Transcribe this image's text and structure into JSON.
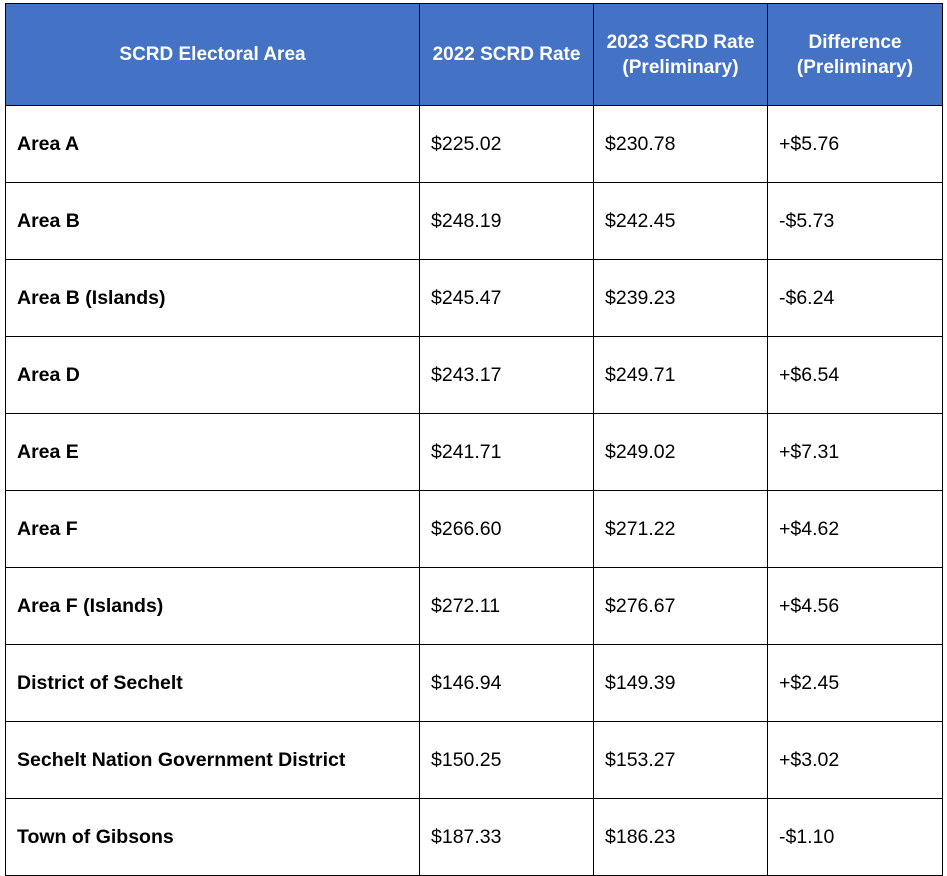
{
  "colors": {
    "header_background": "#4472c4",
    "header_text": "#ffffff",
    "border": "#000000"
  },
  "table": {
    "headers": [
      "SCRD Electoral Area",
      "2022 SCRD Rate",
      "2023 SCRD Rate (Preliminary)",
      "Difference (Preliminary)"
    ],
    "rows": [
      {
        "area": "Area A",
        "rate_2022": "$225.02",
        "rate_2023": "$230.78",
        "difference": "+$5.76"
      },
      {
        "area": "Area B",
        "rate_2022": "$248.19",
        "rate_2023": "$242.45",
        "difference": "-$5.73"
      },
      {
        "area": "Area B (Islands)",
        "rate_2022": "$245.47",
        "rate_2023": "$239.23",
        "difference": "-$6.24"
      },
      {
        "area": "Area D",
        "rate_2022": "$243.17",
        "rate_2023": "$249.71",
        "difference": "+$6.54"
      },
      {
        "area": "Area E",
        "rate_2022": "$241.71",
        "rate_2023": "$249.02",
        "difference": "+$7.31"
      },
      {
        "area": "Area F",
        "rate_2022": "$266.60",
        "rate_2023": "$271.22",
        "difference": "+$4.62"
      },
      {
        "area": "Area F (Islands)",
        "rate_2022": "$272.11",
        "rate_2023": "$276.67",
        "difference": "+$4.56"
      },
      {
        "area": "District of Sechelt",
        "rate_2022": "$146.94",
        "rate_2023": "$149.39",
        "difference": "+$2.45"
      },
      {
        "area": "Sechelt Nation Government District",
        "rate_2022": "$150.25",
        "rate_2023": "$153.27",
        "difference": "+$3.02"
      },
      {
        "area": "Town of Gibsons",
        "rate_2022": "$187.33",
        "rate_2023": "$186.23",
        "difference": "-$1.10"
      }
    ]
  }
}
